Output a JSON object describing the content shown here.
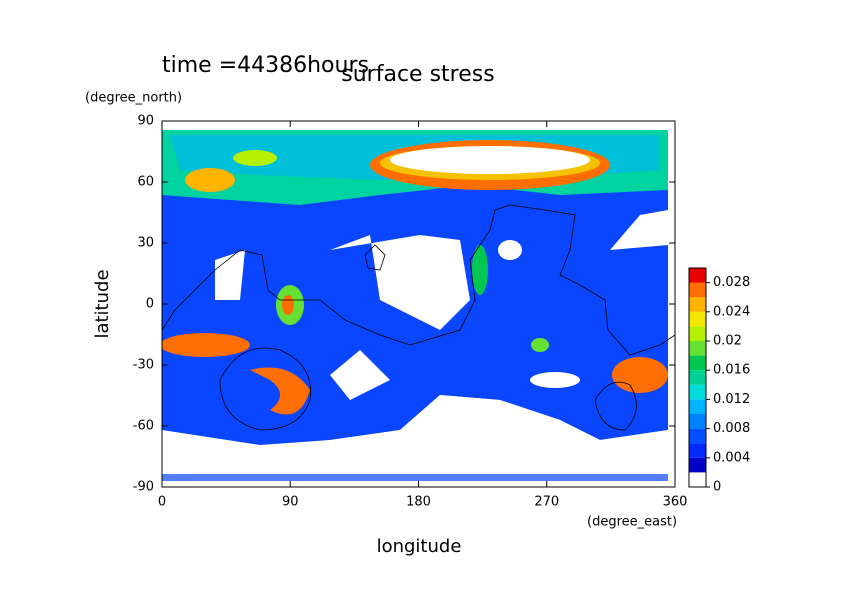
{
  "chart_data": {
    "type": "contour",
    "title": "surface stress",
    "annotation": "time =44386hours",
    "xlabel": "longitude",
    "xunit": "(degree_east)",
    "ylabel": "latitude",
    "yunit": "(degree_north)",
    "xlim": [
      0,
      360
    ],
    "xticks": [
      0,
      90,
      180,
      270,
      360
    ],
    "ylim": [
      -90,
      90
    ],
    "yticks": [
      -90,
      -60,
      -30,
      0,
      30,
      60,
      90
    ],
    "colorbar": {
      "levels": [
        0,
        0.002,
        0.004,
        0.006,
        0.008,
        0.01,
        0.012,
        0.014,
        0.016,
        0.018,
        0.02,
        0.022,
        0.024,
        0.026,
        0.028,
        0.03
      ],
      "colors": [
        "#ffffff",
        "#0000c8",
        "#0028ff",
        "#0050ff",
        "#0082ff",
        "#00b4ff",
        "#00dcdc",
        "#00d296",
        "#00c850",
        "#64e132",
        "#b4f000",
        "#f0e600",
        "#ffb400",
        "#ff6e00",
        "#e60000"
      ],
      "ticks": [
        0,
        0.004,
        0.008,
        0.012,
        0.016,
        0.02,
        0.024,
        0.028
      ]
    }
  }
}
